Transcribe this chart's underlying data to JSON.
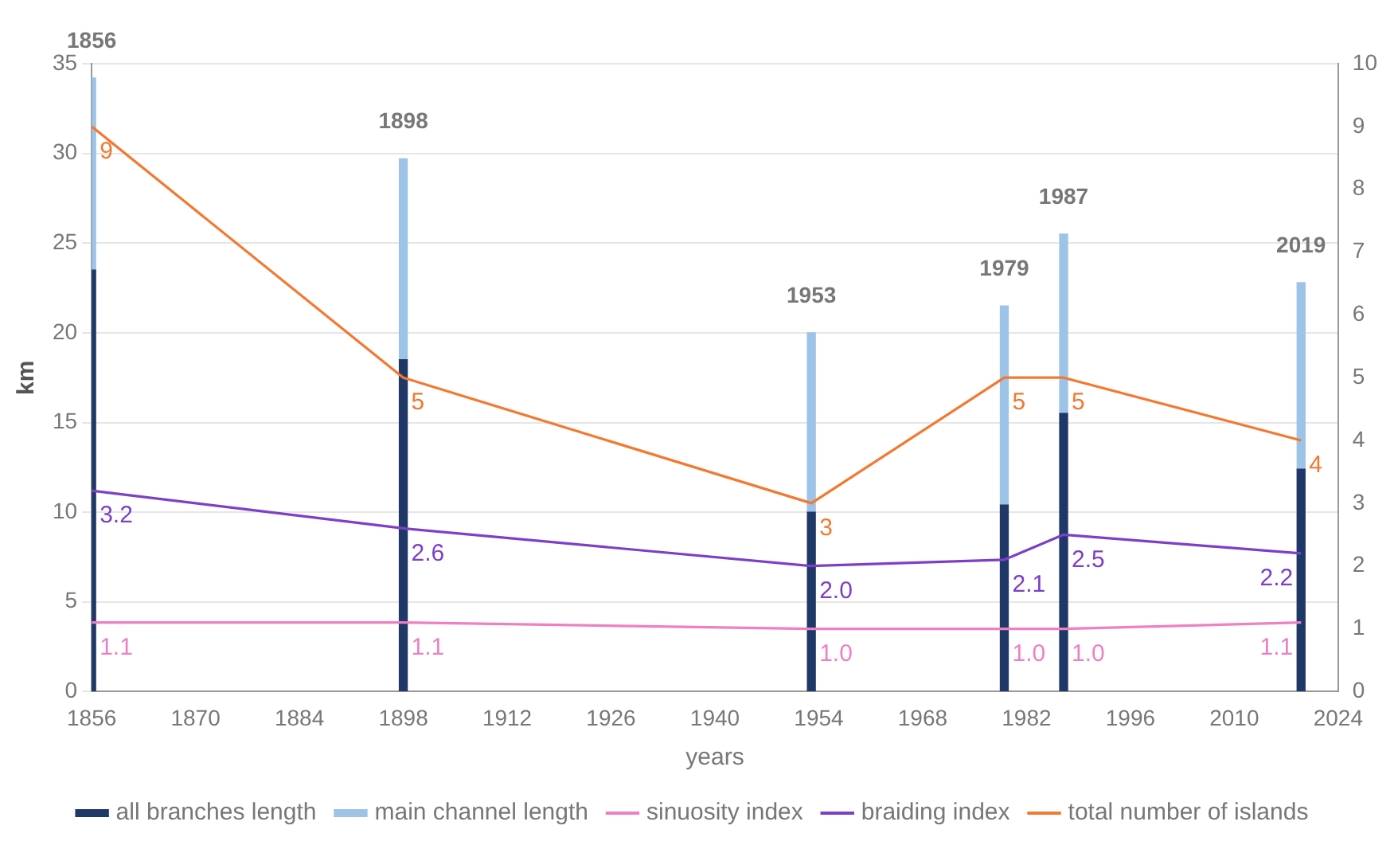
{
  "chart_data": {
    "type": "bar",
    "xlabel": "years",
    "ylabel": "km",
    "x": [
      1856,
      1898,
      1953,
      1979,
      1987,
      2019
    ],
    "series": [
      {
        "name": "all branches length",
        "color": "#1f3868",
        "values": [
          23.5,
          18.5,
          10.0,
          10.4,
          15.5,
          12.4
        ]
      },
      {
        "name": "main channel length",
        "color": "#9dc3e6",
        "values": [
          10.7,
          11.2,
          10.0,
          11.1,
          10.0,
          10.4
        ]
      },
      {
        "name": "sinuosity index",
        "type": "line",
        "axis": "y2",
        "color": "#ee7fc4",
        "values": [
          1.1,
          1.1,
          1.0,
          1.0,
          1.0,
          1.1
        ],
        "value_labels": [
          "1.1",
          "1.1",
          "1.0",
          "1.0",
          "1.0",
          "1.1"
        ]
      },
      {
        "name": "braiding index",
        "type": "line",
        "axis": "y2",
        "color": "#7d3fc8",
        "values": [
          3.2,
          2.6,
          2.0,
          2.1,
          2.5,
          2.2
        ],
        "value_labels": [
          "3.2",
          "2.6",
          "2.0",
          "2.1",
          "2.5",
          "2.2"
        ]
      },
      {
        "name": "total number of islands",
        "type": "line",
        "axis": "y2",
        "color": "#f4782f",
        "values": [
          9,
          5,
          3,
          5,
          5,
          4
        ],
        "value_labels": [
          "9",
          "5",
          "3",
          "5",
          "5",
          "4"
        ]
      }
    ],
    "annotations": [
      {
        "text": "1856",
        "x": 1856,
        "y": 34.2
      },
      {
        "text": "1898",
        "x": 1898,
        "y": 29.7
      },
      {
        "text": "1953",
        "x": 1953,
        "y": 20.0
      },
      {
        "text": "1979",
        "x": 1979,
        "y": 21.5
      },
      {
        "text": "1987",
        "x": 1987,
        "y": 25.5
      },
      {
        "text": "2019",
        "x": 2019,
        "y": 22.8
      }
    ],
    "xlim": [
      1856,
      2024
    ],
    "xticks": [
      1856,
      1870,
      1884,
      1898,
      1912,
      1926,
      1940,
      1954,
      1968,
      1982,
      1996,
      2010,
      2024
    ],
    "ylim": [
      0,
      35
    ],
    "yticks": [
      0,
      5,
      10,
      15,
      20,
      25,
      30,
      35
    ],
    "y2lim": [
      0,
      10
    ],
    "y2ticks": [
      0,
      1,
      2,
      3,
      4,
      5,
      6,
      7,
      8,
      9,
      10
    ],
    "stacked": true,
    "grid": "y",
    "legend": "bottom",
    "marker": "none"
  }
}
